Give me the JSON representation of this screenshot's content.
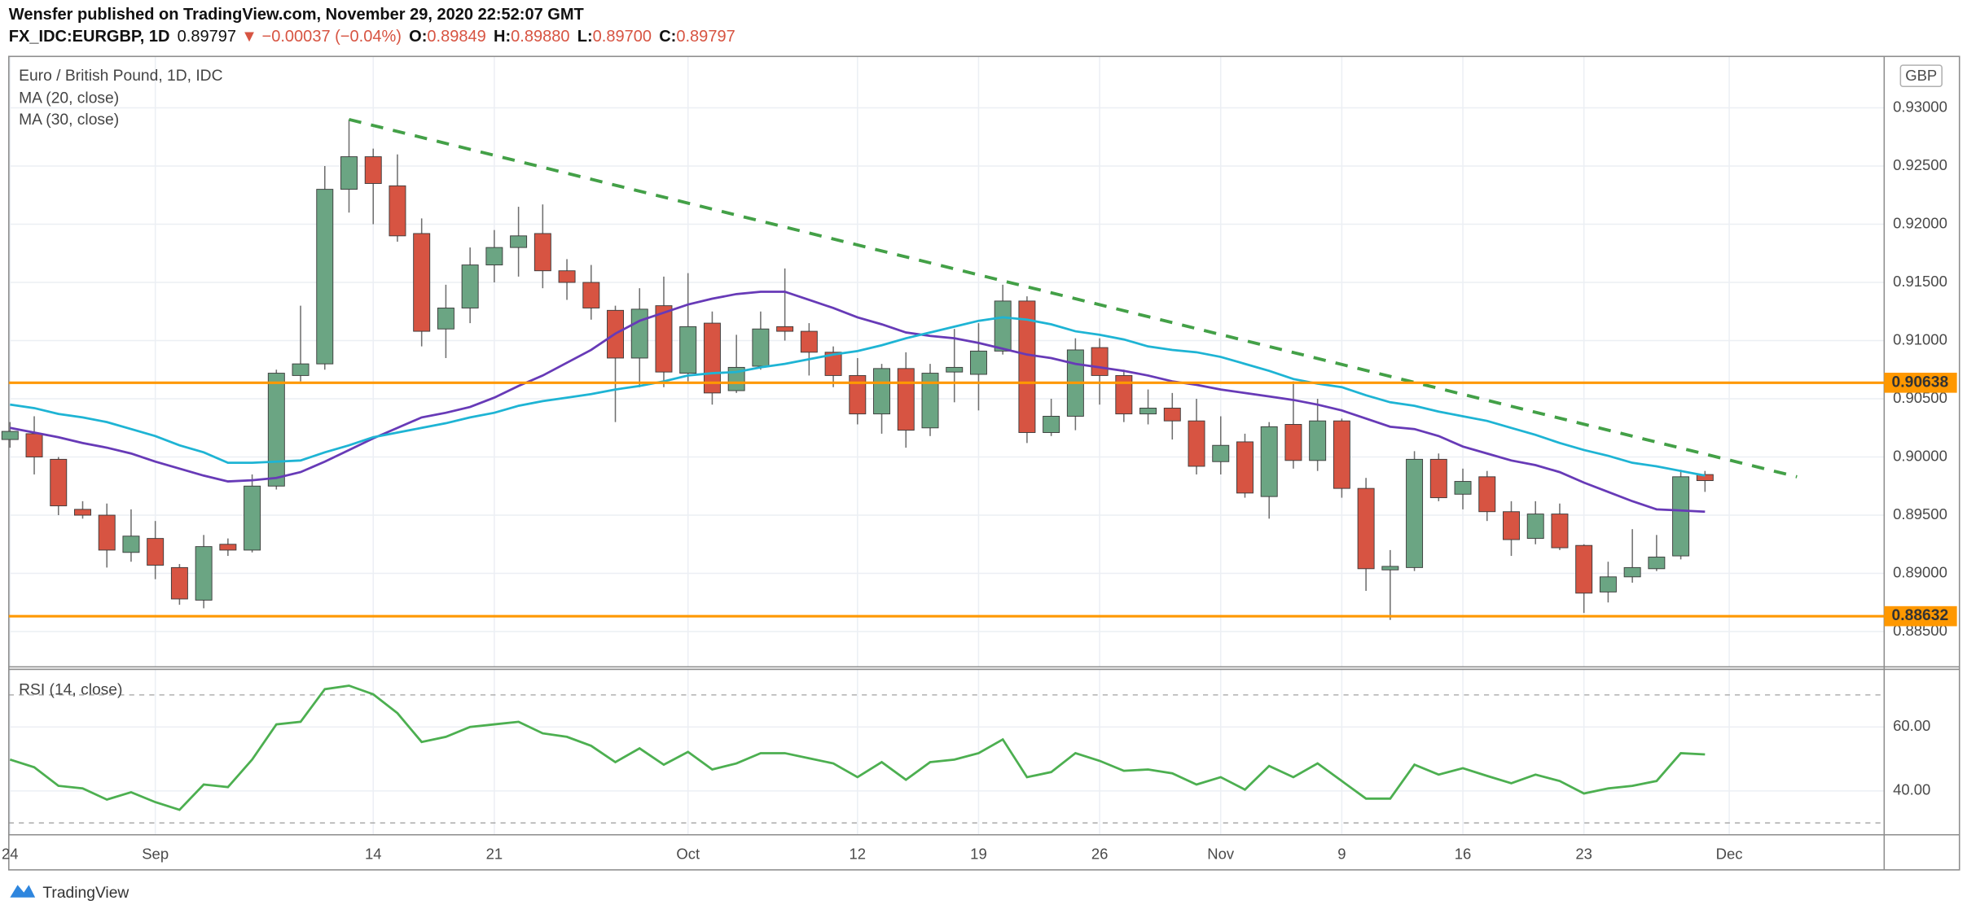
{
  "header": {
    "published": "Wensfer published on TradingView.com, November 29, 2020 22:52:07 GMT",
    "symbol": "FX_IDC:EURGBP, 1D",
    "last": "0.89797",
    "change": "▼ −0.00037 (−0.04%)",
    "ohlc": [
      {
        "key": "O:",
        "value": "0.89849"
      },
      {
        "key": "H:",
        "value": "0.89880"
      },
      {
        "key": "L:",
        "value": "0.89700"
      },
      {
        "key": "C:",
        "value": "0.89797"
      }
    ]
  },
  "footer": {
    "brand": "TradingView"
  },
  "chart_data": [
    {
      "type": "candlestick",
      "title": "Euro / British Pound, 1D, IDC",
      "currency": "GBP",
      "up_color": "#6ba583",
      "down_color": "#d75442",
      "wick_color": "#6f6f6f",
      "open": [
        0.9015,
        0.902,
        0.8998,
        0.8955,
        0.895,
        0.8918,
        0.893,
        0.8905,
        0.8877,
        0.8925,
        0.892,
        0.8975,
        0.907,
        0.908,
        0.923,
        0.9258,
        0.9233,
        0.9192,
        0.911,
        0.9128,
        0.9165,
        0.918,
        0.9192,
        0.916,
        0.915,
        0.9126,
        0.9085,
        0.913,
        0.9072,
        0.9115,
        0.9057,
        0.9078,
        0.9112,
        0.9108,
        0.909,
        0.907,
        0.9037,
        0.9076,
        0.9025,
        0.9073,
        0.9071,
        0.9091,
        0.9134,
        0.9021,
        0.9035,
        0.9094,
        0.907,
        0.9037,
        0.9042,
        0.9031,
        0.8996,
        0.9013,
        0.8966,
        0.9028,
        0.8997,
        0.9031,
        0.8973,
        0.8903,
        0.8905,
        0.8998,
        0.8968,
        0.8983,
        0.8953,
        0.893,
        0.8951,
        0.8924,
        0.8884,
        0.8897,
        0.8904,
        0.8915,
        0.89849
      ],
      "high": [
        0.903,
        0.9035,
        0.9,
        0.8962,
        0.896,
        0.8955,
        0.8945,
        0.8908,
        0.8933,
        0.893,
        0.8985,
        0.9075,
        0.913,
        0.925,
        0.929,
        0.9265,
        0.926,
        0.9205,
        0.9148,
        0.918,
        0.9195,
        0.9215,
        0.9217,
        0.917,
        0.9165,
        0.913,
        0.9145,
        0.9155,
        0.9158,
        0.9125,
        0.9105,
        0.9125,
        0.9162,
        0.9115,
        0.9095,
        0.9085,
        0.908,
        0.909,
        0.908,
        0.911,
        0.9115,
        0.9148,
        0.9138,
        0.905,
        0.9102,
        0.9102,
        0.9075,
        0.9058,
        0.9055,
        0.905,
        0.9035,
        0.902,
        0.903,
        0.9065,
        0.905,
        0.9033,
        0.8982,
        0.892,
        0.9005,
        0.9003,
        0.899,
        0.8988,
        0.8962,
        0.8962,
        0.896,
        0.8925,
        0.891,
        0.8938,
        0.8933,
        0.8989,
        0.8988
      ],
      "low": [
        0.9008,
        0.8985,
        0.895,
        0.8947,
        0.8905,
        0.891,
        0.8895,
        0.8873,
        0.887,
        0.8915,
        0.8918,
        0.8972,
        0.9065,
        0.9075,
        0.921,
        0.92,
        0.9185,
        0.9095,
        0.9085,
        0.9115,
        0.915,
        0.9155,
        0.9145,
        0.9135,
        0.9118,
        0.903,
        0.906,
        0.906,
        0.9065,
        0.9045,
        0.9055,
        0.9075,
        0.91,
        0.907,
        0.906,
        0.9028,
        0.902,
        0.9008,
        0.9018,
        0.9047,
        0.904,
        0.9088,
        0.9012,
        0.9018,
        0.9023,
        0.9045,
        0.903,
        0.9028,
        0.9015,
        0.8985,
        0.8985,
        0.8965,
        0.8947,
        0.899,
        0.8988,
        0.8965,
        0.8885,
        0.886,
        0.8902,
        0.8962,
        0.8955,
        0.8945,
        0.8915,
        0.8925,
        0.892,
        0.8866,
        0.8875,
        0.8892,
        0.8902,
        0.8912,
        0.897
      ],
      "close": [
        0.9022,
        0.9,
        0.8958,
        0.895,
        0.892,
        0.8932,
        0.8907,
        0.8878,
        0.8923,
        0.892,
        0.8975,
        0.9072,
        0.908,
        0.923,
        0.9258,
        0.9235,
        0.919,
        0.9108,
        0.9128,
        0.9165,
        0.918,
        0.919,
        0.916,
        0.915,
        0.9128,
        0.9085,
        0.9127,
        0.9073,
        0.9112,
        0.9055,
        0.9077,
        0.911,
        0.9108,
        0.909,
        0.907,
        0.9037,
        0.9076,
        0.9023,
        0.9072,
        0.9077,
        0.9091,
        0.9134,
        0.9021,
        0.9035,
        0.9092,
        0.907,
        0.9037,
        0.9042,
        0.9031,
        0.8992,
        0.901,
        0.8969,
        0.9026,
        0.8997,
        0.9031,
        0.8973,
        0.8904,
        0.8906,
        0.8998,
        0.8965,
        0.8979,
        0.8953,
        0.8929,
        0.8951,
        0.8922,
        0.8883,
        0.8897,
        0.8905,
        0.8914,
        0.8983,
        0.89797
      ],
      "overlays": [
        {
          "name": "MA (20, close)",
          "color": "#673ab7",
          "values": [
            0.9025,
            0.9021,
            0.9017,
            0.9012,
            0.9008,
            0.9003,
            0.8996,
            0.899,
            0.8984,
            0.8979,
            0.898,
            0.8982,
            0.8987,
            0.8996,
            0.9006,
            0.9016,
            0.9025,
            0.9034,
            0.9038,
            0.9043,
            0.9051,
            0.9061,
            0.907,
            0.9081,
            0.9092,
            0.9106,
            0.9117,
            0.9124,
            0.9131,
            0.9136,
            0.914,
            0.9142,
            0.9142,
            0.9135,
            0.9128,
            0.912,
            0.9114,
            0.9107,
            0.9104,
            0.9102,
            0.9098,
            0.9093,
            0.9088,
            0.9085,
            0.908,
            0.9077,
            0.9074,
            0.907,
            0.9065,
            0.9062,
            0.9058,
            0.9055,
            0.9052,
            0.9049,
            0.9045,
            0.904,
            0.9033,
            0.9026,
            0.9024,
            0.9018,
            0.9009,
            0.9003,
            0.8997,
            0.8993,
            0.8987,
            0.8978,
            0.897,
            0.8962,
            0.8955,
            0.8954,
            0.8953
          ]
        },
        {
          "name": "MA (30, close)",
          "color": "#1eb4d4",
          "values": [
            0.9045,
            0.9042,
            0.9037,
            0.9034,
            0.903,
            0.9024,
            0.9018,
            0.901,
            0.9004,
            0.8995,
            0.8995,
            0.8996,
            0.8997,
            0.9004,
            0.901,
            0.9017,
            0.9021,
            0.9025,
            0.9029,
            0.9034,
            0.9038,
            0.9044,
            0.9048,
            0.9051,
            0.9054,
            0.9058,
            0.9061,
            0.9065,
            0.907,
            0.9072,
            0.9073,
            0.9077,
            0.908,
            0.9084,
            0.9088,
            0.9091,
            0.9096,
            0.9102,
            0.9107,
            0.9112,
            0.9117,
            0.912,
            0.9118,
            0.9114,
            0.9108,
            0.9105,
            0.9101,
            0.9095,
            0.9092,
            0.909,
            0.9086,
            0.908,
            0.9074,
            0.9067,
            0.9063,
            0.906,
            0.9053,
            0.9047,
            0.9044,
            0.9039,
            0.9035,
            0.9031,
            0.9025,
            0.9019,
            0.9012,
            0.9006,
            0.9001,
            0.8995,
            0.8992,
            0.8988,
            0.8984
          ]
        }
      ],
      "levels": [
        {
          "value": 0.90638,
          "label": "0.90638"
        },
        {
          "value": 0.88632,
          "label": "0.88632"
        }
      ],
      "level_color": "#ff9800",
      "trend_line": {
        "color": "#43a047",
        "start": [
          14,
          0.929
        ],
        "end": [
          73.8,
          0.8983
        ]
      },
      "xlim": [
        -0.05,
        77.4
      ],
      "ylim": [
        0.88197,
        0.93442
      ],
      "yticks": [
        {
          "value": 0.885,
          "label": "0.88500"
        },
        {
          "value": 0.89,
          "label": "0.89000"
        },
        {
          "value": 0.895,
          "label": "0.89500"
        },
        {
          "value": 0.9,
          "label": "0.90000"
        },
        {
          "value": 0.905,
          "label": "0.90500"
        },
        {
          "value": 0.91,
          "label": "0.91000"
        },
        {
          "value": 0.915,
          "label": "0.91500"
        },
        {
          "value": 0.92,
          "label": "0.92000"
        },
        {
          "value": 0.925,
          "label": "0.92500"
        },
        {
          "value": 0.93,
          "label": "0.93000"
        }
      ],
      "grid": true
    },
    {
      "type": "line",
      "title": "RSI (14, close)",
      "color": "#4caf50",
      "values": [
        49.8,
        47.4,
        41.6,
        40.8,
        37.3,
        39.6,
        36.5,
        34.1,
        42.0,
        41.2,
        49.8,
        60.8,
        61.6,
        71.8,
        72.9,
        70.2,
        64.3,
        55.3,
        56.9,
        60.0,
        60.8,
        61.6,
        58.0,
        56.9,
        54.1,
        49.0,
        53.3,
        48.2,
        52.2,
        46.7,
        48.6,
        51.8,
        51.8,
        50.2,
        48.6,
        44.3,
        49.0,
        43.5,
        49.0,
        49.8,
        51.8,
        56.1,
        44.3,
        45.9,
        51.8,
        49.4,
        46.3,
        46.7,
        45.5,
        42.0,
        44.3,
        40.4,
        47.8,
        44.3,
        48.6,
        43.1,
        37.6,
        37.6,
        48.2,
        45.1,
        47.1,
        44.7,
        42.4,
        45.1,
        43.1,
        39.2,
        40.8,
        41.6,
        43.1,
        51.8,
        51.4
      ],
      "bands": [
        70,
        30
      ],
      "band_color": "#b0b0b0",
      "xlim": [
        -0.05,
        77.4
      ],
      "ylim": [
        26.3,
        78.0
      ],
      "yticks": [
        {
          "value": 40,
          "label": "40.00"
        },
        {
          "value": 60,
          "label": "60.00"
        }
      ],
      "xticks": [
        {
          "value": 0,
          "label": "24"
        },
        {
          "value": 6,
          "label": "Sep"
        },
        {
          "value": 15,
          "label": "14"
        },
        {
          "value": 20,
          "label": "21"
        },
        {
          "value": 28,
          "label": "Oct"
        },
        {
          "value": 35,
          "label": "12"
        },
        {
          "value": 40,
          "label": "19"
        },
        {
          "value": 45,
          "label": "26"
        },
        {
          "value": 50,
          "label": "Nov"
        },
        {
          "value": 55,
          "label": "9"
        },
        {
          "value": 60,
          "label": "16"
        },
        {
          "value": 65,
          "label": "23"
        },
        {
          "value": 71,
          "label": "Dec"
        }
      ],
      "grid": true
    }
  ]
}
